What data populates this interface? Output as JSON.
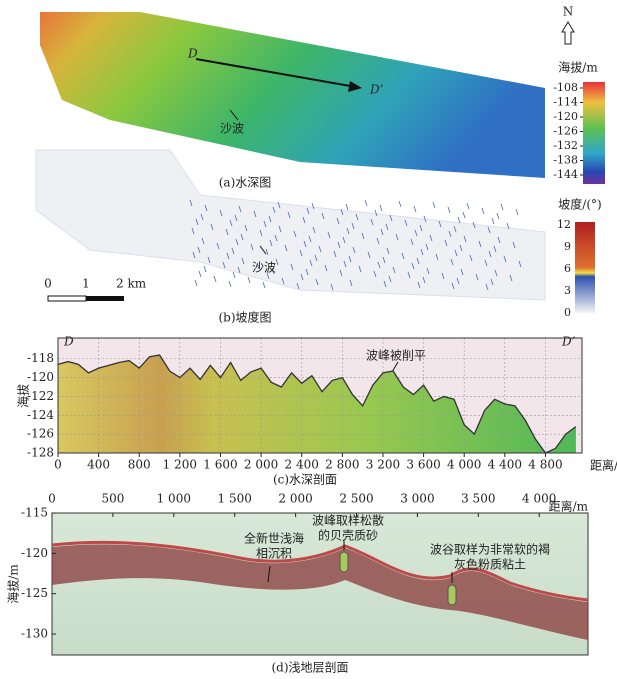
{
  "chart_data": {
    "type": "line",
    "title": "(c)水深剖面",
    "x_label": "距离/m",
    "y_label": "海拔",
    "start_label": "D",
    "end_label": "D’",
    "annotation": "波峰被削平",
    "color": "#333333",
    "grid": true,
    "x": [
      0,
      100,
      200,
      300,
      400,
      500,
      600,
      700,
      800,
      900,
      1000,
      1100,
      1200,
      1300,
      1400,
      1500,
      1600,
      1700,
      1800,
      1900,
      2000,
      2100,
      2200,
      2300,
      2400,
      2500,
      2600,
      2700,
      2800,
      2900,
      3000,
      3100,
      3200,
      3300,
      3400,
      3500,
      3600,
      3700,
      3800,
      3900,
      4000,
      4100,
      4200,
      4300,
      4400,
      4500,
      4600,
      4700,
      4800,
      4900,
      5000,
      5100
    ],
    "values": [
      -118.6,
      -118.3,
      -118.6,
      -119.5,
      -119.0,
      -118.7,
      -118.4,
      -118.2,
      -119.0,
      -117.8,
      -117.6,
      -119.3,
      -120.0,
      -119.0,
      -120.2,
      -118.7,
      -120.0,
      -118.4,
      -120.3,
      -119.4,
      -119.0,
      -120.5,
      -121.0,
      -119.5,
      -120.6,
      -119.8,
      -121.5,
      -120.3,
      -120.0,
      -121.8,
      -123.0,
      -120.8,
      -119.5,
      -119.3,
      -121.0,
      -121.8,
      -120.8,
      -122.5,
      -122.0,
      -122.3,
      -125.0,
      -126.0,
      -123.5,
      -122.3,
      -122.8,
      -123.0,
      -124.5,
      -126.5,
      -128.0,
      -127.5,
      -126.0,
      -125.2
    ],
    "xlim": [
      0,
      5160
    ],
    "ylim": [
      -128,
      -115.8
    ],
    "xticks": [
      0,
      400,
      800,
      {
        "value": 1200,
        "label": "1 200"
      },
      {
        "value": 1600,
        "label": "1 600"
      },
      {
        "value": 2000,
        "label": "2 000"
      },
      {
        "value": 2400,
        "label": "2 400"
      },
      {
        "value": 2800,
        "label": "2 800"
      },
      {
        "value": 3200,
        "label": "3 200"
      },
      {
        "value": 3600,
        "label": "3 600"
      },
      {
        "value": 4000,
        "label": "4 000"
      },
      {
        "value": 4400,
        "label": "4 400"
      },
      {
        "value": 4800,
        "label": "4 800"
      }
    ],
    "yticks": [
      -118,
      -120,
      -122,
      -124,
      -126,
      -128
    ]
  },
  "figure": {
    "panel_a": {
      "north": "N",
      "colorbar_title": "海拔/m",
      "colorbar_ticks": [
        -108,
        -114,
        -120,
        -126,
        -132,
        -138,
        -144
      ],
      "start_label": "D",
      "end_label": "D’",
      "sand_wave": "沙波",
      "caption": "(a)水深图"
    },
    "panel_b": {
      "colorbar_title": "坡度/(°)",
      "colorbar_ticks": [
        12,
        9,
        6,
        3,
        0
      ],
      "sand_wave": "沙波",
      "scale_labels": [
        "0",
        "1",
        "2 km"
      ],
      "caption": "(b)坡度图"
    },
    "panel_d": {
      "xticks": [
        "0",
        "500",
        "1 000",
        "1 500",
        "2 000",
        "2 500",
        "3 000",
        "3 500",
        "4 000"
      ],
      "x_label": "距离/m",
      "yticks": [
        -115,
        -120,
        -125,
        -130
      ],
      "y_label": "海拔/m",
      "annotations": [
        [
          "全新世浅海",
          "相沉积"
        ],
        [
          "波峰取样松散",
          "的贝壳质砂"
        ],
        [
          "波谷取样为非常软的褐",
          "灰色粉质粘土"
        ]
      ],
      "caption": "(d)浅地层剖面"
    }
  }
}
